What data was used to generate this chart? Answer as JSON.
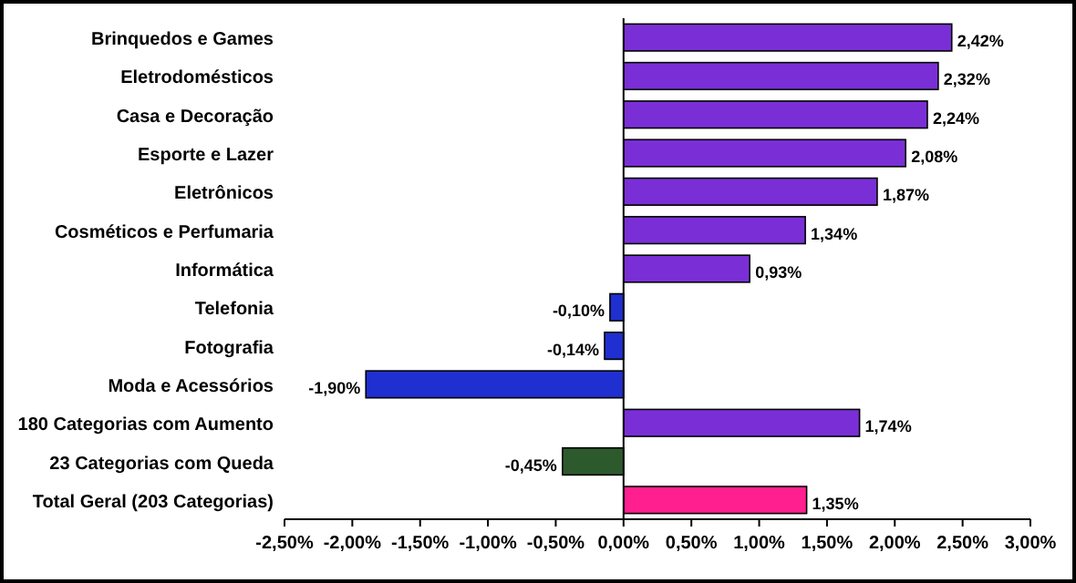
{
  "chart_data": {
    "type": "bar",
    "orientation": "horizontal",
    "categories": [
      "Brinquedos e Games",
      "Eletrodomésticos",
      "Casa e Decoração",
      "Esporte e Lazer",
      "Eletrônicos",
      "Cosméticos e Perfumaria",
      "Informática",
      "Telefonia",
      "Fotografia",
      "Moda e Acessórios",
      "180 Categorias com Aumento",
      "23 Categorias com Queda",
      "Total Geral (203 Categorias)"
    ],
    "values": [
      2.42,
      2.32,
      2.24,
      2.08,
      1.87,
      1.34,
      0.93,
      -0.1,
      -0.14,
      -1.9,
      1.74,
      -0.45,
      1.35
    ],
    "colors": [
      "#7a2fd6",
      "#7a2fd6",
      "#7a2fd6",
      "#7a2fd6",
      "#7a2fd6",
      "#7a2fd6",
      "#7a2fd6",
      "#1f2fd0",
      "#1f2fd0",
      "#1f2fd0",
      "#7a2fd6",
      "#2d5a2d",
      "#ff1f8f"
    ],
    "value_labels": [
      "2,42%",
      "2,32%",
      "2,24%",
      "2,08%",
      "1,87%",
      "1,34%",
      "0,93%",
      "-0,10%",
      "-0,14%",
      "-1,90%",
      "1,74%",
      "-0,45%",
      "1,35%"
    ],
    "xlim": [
      -2.5,
      3.0
    ],
    "xticks": [
      {
        "value": -2.5,
        "label": "-2,50%"
      },
      {
        "value": -2.0,
        "label": "-2,00%"
      },
      {
        "value": -1.5,
        "label": "-1,50%"
      },
      {
        "value": -1.0,
        "label": "-1,00%"
      },
      {
        "value": -0.5,
        "label": "-0,50%"
      },
      {
        "value": 0,
        "label": "0,00%"
      },
      {
        "value": 0.5,
        "label": "0,50%"
      },
      {
        "value": 1.0,
        "label": "1,00%"
      },
      {
        "value": 1.5,
        "label": "1,50%"
      },
      {
        "value": 2.0,
        "label": "2,00%"
      },
      {
        "value": 2.5,
        "label": "2,50%"
      },
      {
        "value": 3.0,
        "label": "3,00%"
      }
    ]
  }
}
